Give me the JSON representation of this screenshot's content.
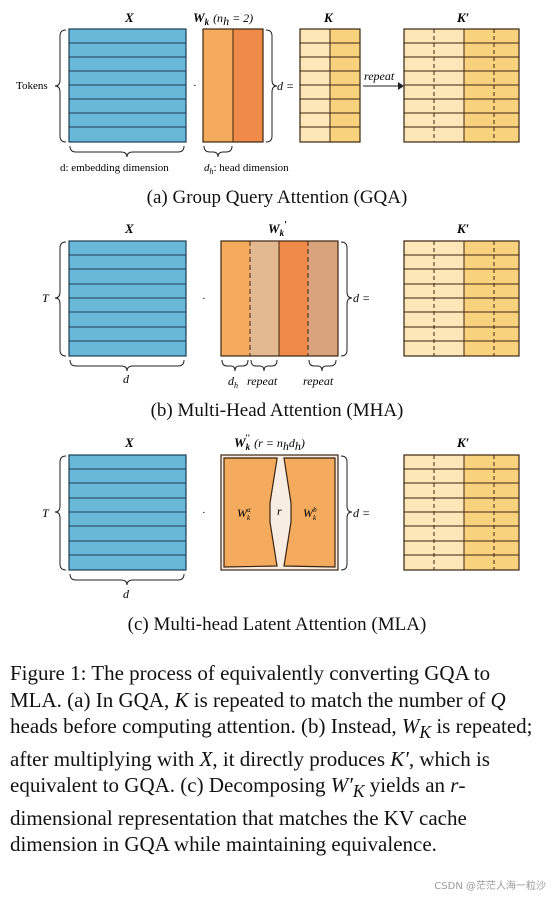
{
  "panel_a": {
    "label_x": "X",
    "label_w": "W",
    "label_w_sub": "k",
    "label_w_extra": "(n",
    "label_w_extra_sub": "h",
    "label_w_extra_end": " = 2)",
    "label_k": "K",
    "label_kp": "K′",
    "tokens": "Tokens",
    "d_eq": "d =",
    "dot": "·",
    "repeat": "repeat",
    "embed": "d: embedding dimension",
    "head_d": "d",
    "head_d_sub": "h",
    "head_dim": ": head dimension",
    "caption": "(a) Group Query Attention (GQA)"
  },
  "panel_b": {
    "label_x": "X",
    "label_w": "W",
    "label_w_sub": "k",
    "label_w_prime": "′",
    "label_kp": "K′",
    "t": "T",
    "d": "d",
    "d_eq": "d  =",
    "dot": "·",
    "dh": "d",
    "dh_sub": "h",
    "repeat1": "repeat",
    "repeat2": "repeat",
    "caption": "(b) Multi-Head Attention (MHA)"
  },
  "panel_c": {
    "label_x": "X",
    "label_w": "W",
    "label_w_sub": "k",
    "label_w_sup": "′′",
    "label_w_extra": "(r = n",
    "label_w_extra_sub": "h",
    "label_w_extra_end": "d",
    "label_w_extra_sub2": "h",
    "label_w_extra_close": ")",
    "label_kp": "K′",
    "t": "T",
    "d": "d",
    "d_eq": "d  =",
    "dot": "·",
    "wa": "W",
    "wa_sub": "k",
    "wa_sup": "a",
    "r": "r",
    "wb": "W",
    "wb_sub": "k",
    "wb_sup": "b",
    "caption": "(c) Multi-head Latent Attention (MLA)"
  },
  "figure_caption": {
    "p1": "Figure 1: The process of equivalently converting GQA to MLA. (a) In GQA, ",
    "k": "K",
    "p2": " is repeated to match the number of ",
    "q": "Q",
    "p3": " heads before computing attention. (b) Instead, ",
    "wk": "W",
    "wk_sub": "K",
    "p4": " is repeated; after multiplying with ",
    "x": "X",
    "p5": ", it directly produces ",
    "kp": "K′",
    "p6": ", which is equivalent to GQA. (c) Decomposing ",
    "wkp": "W′",
    "wkp_sub": "K",
    "p7": " yields an ",
    "r": "r",
    "p8": "-dimensional representation that matches the KV cache dimension in GQA while maintaining equivalence."
  },
  "watermark": "CSDN @茫茫人海一粒沙",
  "colors": {
    "x_fill": "#6ab8d8",
    "w_light": "#f4ab5e",
    "w_dark": "#ef8a48",
    "w_tan": "#e3b992",
    "w_tan_dark": "#d9a37e",
    "k_light": "#fde6b8",
    "k_dark": "#f9d27e",
    "latent_bg": "#f7ede2"
  }
}
